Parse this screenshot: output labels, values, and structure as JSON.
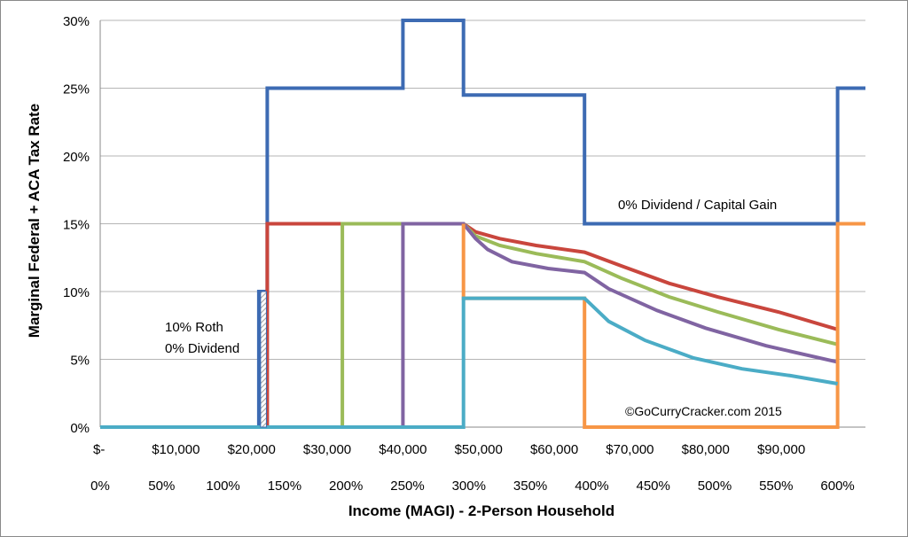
{
  "chart_data": {
    "type": "line",
    "ylabel": "Marginal Federal + ACA Tax Rate",
    "xlabel": "Income (MAGI) - 2-Person Household",
    "ylim": [
      0,
      30
    ],
    "xlim": [
      0,
      632
    ],
    "grid": "horizontal",
    "y_ticks": [
      "0%",
      "5%",
      "10%",
      "15%",
      "20%",
      "25%",
      "30%"
    ],
    "x_ticks_dollar": [
      {
        "label": "$-",
        "x": 0
      },
      {
        "label": "$10,000",
        "x": 62.5
      },
      {
        "label": "$20,000",
        "x": 125
      },
      {
        "label": "$30,000",
        "x": 187.5
      },
      {
        "label": "$40,000",
        "x": 250
      },
      {
        "label": "$50,000",
        "x": 312.5
      },
      {
        "label": "$60,000",
        "x": 375
      },
      {
        "label": "$70,000",
        "x": 437.5
      },
      {
        "label": "$80,000",
        "x": 500
      },
      {
        "label": "$90,000",
        "x": 562.5
      }
    ],
    "x_ticks_fpl": [
      "0%",
      "50%",
      "100%",
      "150%",
      "200%",
      "250%",
      "300%",
      "350%",
      "400%",
      "450%",
      "500%",
      "550%",
      "600%"
    ],
    "annotations": {
      "roth": [
        "10% Roth",
        "0% Dividend"
      ],
      "capgain": "0% Dividend / Capital Gain",
      "copyright": "©GoCurryCracker.com 2015"
    },
    "series": [
      {
        "color": "#3d6bb3",
        "points": [
          [
            0,
            0
          ],
          [
            131,
            0
          ],
          [
            131,
            10
          ],
          [
            138,
            10
          ],
          [
            138,
            25
          ],
          [
            250,
            25
          ],
          [
            250,
            30
          ],
          [
            300,
            30
          ],
          [
            300,
            24.5
          ],
          [
            400,
            24.5
          ],
          [
            400,
            15
          ],
          [
            609,
            15
          ],
          [
            609,
            25
          ],
          [
            632,
            25
          ]
        ]
      },
      {
        "color": "#c9463d",
        "points": [
          [
            0,
            0
          ],
          [
            138,
            0
          ],
          [
            138,
            15
          ],
          [
            300,
            15
          ],
          [
            310,
            14.4
          ],
          [
            330,
            13.9
          ],
          [
            360,
            13.4
          ],
          [
            400,
            12.9
          ],
          [
            430,
            11.9
          ],
          [
            470,
            10.6
          ],
          [
            510,
            9.6
          ],
          [
            560,
            8.5
          ],
          [
            609,
            7.2
          ]
        ]
      },
      {
        "color": "#9bbb59",
        "points": [
          [
            200,
            0
          ],
          [
            200,
            15
          ],
          [
            300,
            15
          ],
          [
            310,
            14.1
          ],
          [
            330,
            13.4
          ],
          [
            360,
            12.8
          ],
          [
            400,
            12.2
          ],
          [
            430,
            11.0
          ],
          [
            470,
            9.6
          ],
          [
            510,
            8.5
          ],
          [
            560,
            7.2
          ],
          [
            609,
            6.1
          ]
        ]
      },
      {
        "color": "#8064a2",
        "points": [
          [
            250,
            0
          ],
          [
            250,
            15
          ],
          [
            300,
            15
          ],
          [
            310,
            13.9
          ],
          [
            320,
            13.1
          ],
          [
            340,
            12.2
          ],
          [
            370,
            11.7
          ],
          [
            400,
            11.4
          ],
          [
            420,
            10.2
          ],
          [
            460,
            8.6
          ],
          [
            500,
            7.3
          ],
          [
            550,
            6.0
          ],
          [
            609,
            4.8
          ]
        ]
      },
      {
        "color": "#f79646",
        "points": [
          [
            300,
            15
          ],
          [
            300,
            9.5
          ],
          [
            400,
            9.5
          ],
          [
            400,
            0
          ],
          [
            609,
            0
          ],
          [
            609,
            15
          ],
          [
            632,
            15
          ]
        ]
      },
      {
        "color": "#4bacc6",
        "points": [
          [
            0,
            0
          ],
          [
            300,
            0
          ],
          [
            300,
            9.5
          ],
          [
            400,
            9.5
          ],
          [
            420,
            7.8
          ],
          [
            450,
            6.4
          ],
          [
            490,
            5.1
          ],
          [
            530,
            4.3
          ],
          [
            570,
            3.8
          ],
          [
            609,
            3.2
          ]
        ]
      }
    ]
  }
}
